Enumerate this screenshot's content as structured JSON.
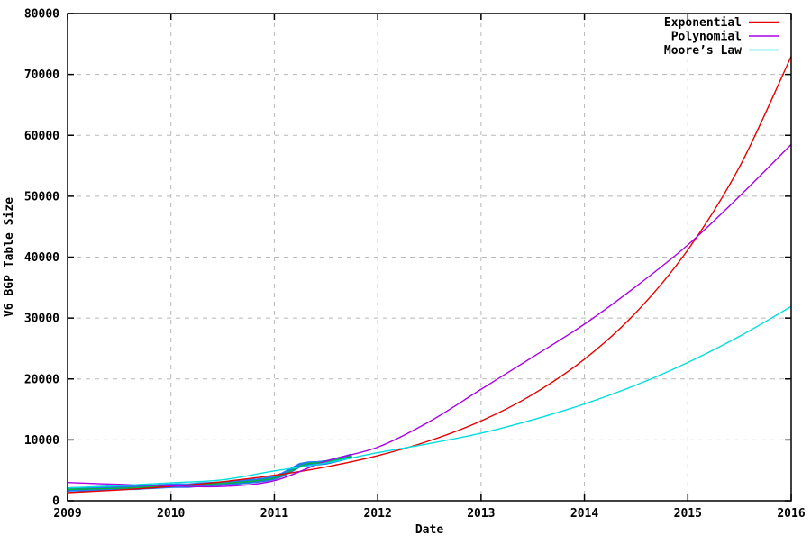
{
  "chart_data": {
    "type": "line",
    "title": "",
    "xlabel": "Date",
    "ylabel": "V6 BGP Table Size",
    "xlim": [
      2009,
      2016
    ],
    "ylim": [
      0,
      80000
    ],
    "x_ticks": [
      2009,
      2010,
      2011,
      2012,
      2013,
      2014,
      2015,
      2016
    ],
    "x_tick_labels": [
      "2009",
      "2010",
      "2011",
      "2012",
      "2013",
      "2014",
      "2015",
      "2016"
    ],
    "y_ticks": [
      0,
      10000,
      20000,
      30000,
      40000,
      50000,
      60000,
      70000,
      80000
    ],
    "y_tick_labels": [
      "0",
      "10000",
      "20000",
      "30000",
      "40000",
      "50000",
      "60000",
      "70000",
      "80000"
    ],
    "grid": true,
    "legend_position": "top-right-inside",
    "colors": {
      "data_points": "#2478f2",
      "data_smooth": "#00b830",
      "exponential": "#e60000",
      "polynomial": "#aa00e6",
      "moores_law": "#00dede",
      "grid": "#b8b8b8",
      "border": "#000000"
    },
    "series": [
      {
        "name": "BGP measured data",
        "key": "data_points",
        "color": "#2478f2",
        "style": "thick-noisy-line",
        "width": 5,
        "smooth": false,
        "in_legend": false,
        "points": [
          [
            2009.0,
            1850
          ],
          [
            2009.08,
            1900
          ],
          [
            2009.17,
            1870
          ],
          [
            2009.25,
            1960
          ],
          [
            2009.33,
            2000
          ],
          [
            2009.42,
            1980
          ],
          [
            2009.5,
            2080
          ],
          [
            2009.58,
            2150
          ],
          [
            2009.67,
            2120
          ],
          [
            2009.75,
            2230
          ],
          [
            2009.83,
            2300
          ],
          [
            2009.92,
            2380
          ],
          [
            2010.0,
            2450
          ],
          [
            2010.08,
            2500
          ],
          [
            2010.17,
            2480
          ],
          [
            2010.25,
            2600
          ],
          [
            2010.33,
            2700
          ],
          [
            2010.42,
            2760
          ],
          [
            2010.5,
            2850
          ],
          [
            2010.58,
            2980
          ],
          [
            2010.67,
            3050
          ],
          [
            2010.75,
            3180
          ],
          [
            2010.83,
            3300
          ],
          [
            2010.92,
            3500
          ],
          [
            2011.0,
            3800
          ],
          [
            2011.08,
            4300
          ],
          [
            2011.17,
            5100
          ],
          [
            2011.25,
            5850
          ],
          [
            2011.33,
            6100
          ],
          [
            2011.42,
            6150
          ],
          [
            2011.5,
            6300
          ],
          [
            2011.58,
            6600
          ],
          [
            2011.67,
            7000
          ],
          [
            2011.75,
            7400
          ]
        ]
      },
      {
        "name": "data smoothed",
        "key": "data_smooth",
        "color": "#00b830",
        "style": "line",
        "width": 1.4,
        "smooth": true,
        "in_legend": false,
        "points": [
          [
            2009.0,
            1880
          ],
          [
            2009.25,
            1950
          ],
          [
            2009.5,
            2060
          ],
          [
            2009.75,
            2200
          ],
          [
            2010.0,
            2450
          ],
          [
            2010.25,
            2620
          ],
          [
            2010.5,
            2870
          ],
          [
            2010.75,
            3150
          ],
          [
            2011.0,
            3750
          ],
          [
            2011.15,
            4800
          ],
          [
            2011.3,
            6000
          ],
          [
            2011.45,
            6250
          ],
          [
            2011.6,
            6700
          ],
          [
            2011.75,
            7350
          ]
        ]
      },
      {
        "name": "Exponential",
        "key": "exponential",
        "color": "#e60000",
        "style": "line",
        "width": 1.4,
        "smooth": true,
        "in_legend": true,
        "points": [
          [
            2009.0,
            1330
          ],
          [
            2009.5,
            1770
          ],
          [
            2010.0,
            2360
          ],
          [
            2010.5,
            3140
          ],
          [
            2011.0,
            4180
          ],
          [
            2011.5,
            5560
          ],
          [
            2012.0,
            7400
          ],
          [
            2012.5,
            9850
          ],
          [
            2013.0,
            13100
          ],
          [
            2013.5,
            17460
          ],
          [
            2014.0,
            23240
          ],
          [
            2014.5,
            30930
          ],
          [
            2015.0,
            41180
          ],
          [
            2015.5,
            54810
          ],
          [
            2016.0,
            72960
          ]
        ]
      },
      {
        "name": "Polynomial",
        "key": "polynomial",
        "color": "#aa00e6",
        "style": "line",
        "width": 1.4,
        "smooth": true,
        "in_legend": true,
        "points": [
          [
            2009.0,
            3000
          ],
          [
            2009.5,
            2700
          ],
          [
            2010.0,
            2450
          ],
          [
            2010.5,
            2350
          ],
          [
            2011.0,
            3300
          ],
          [
            2011.5,
            6500
          ],
          [
            2012.0,
            8800
          ],
          [
            2012.5,
            13000
          ],
          [
            2013.0,
            18300
          ],
          [
            2013.5,
            23600
          ],
          [
            2014.0,
            29000
          ],
          [
            2014.5,
            35200
          ],
          [
            2015.0,
            42000
          ],
          [
            2015.5,
            50000
          ],
          [
            2016.0,
            58500
          ]
        ]
      },
      {
        "name": "Moore’s Law",
        "key": "moores_law",
        "color": "#00dede",
        "style": "line",
        "width": 1.4,
        "smooth": true,
        "in_legend": true,
        "points": [
          [
            2009.0,
            2100
          ],
          [
            2009.5,
            2500
          ],
          [
            2010.0,
            2950
          ],
          [
            2010.5,
            3450
          ],
          [
            2011.0,
            4900
          ],
          [
            2011.5,
            6200
          ],
          [
            2012.0,
            7900
          ],
          [
            2012.5,
            9400
          ],
          [
            2013.0,
            11100
          ],
          [
            2013.5,
            13300
          ],
          [
            2014.0,
            15900
          ],
          [
            2014.5,
            19000
          ],
          [
            2015.0,
            22700
          ],
          [
            2015.5,
            27000
          ],
          [
            2016.0,
            31900
          ]
        ]
      }
    ],
    "legend": [
      {
        "label": "Exponential",
        "series_key": "exponential"
      },
      {
        "label": "Polynomial",
        "series_key": "polynomial"
      },
      {
        "label": "Moore’s Law",
        "series_key": "moores_law"
      }
    ],
    "annotations": []
  }
}
